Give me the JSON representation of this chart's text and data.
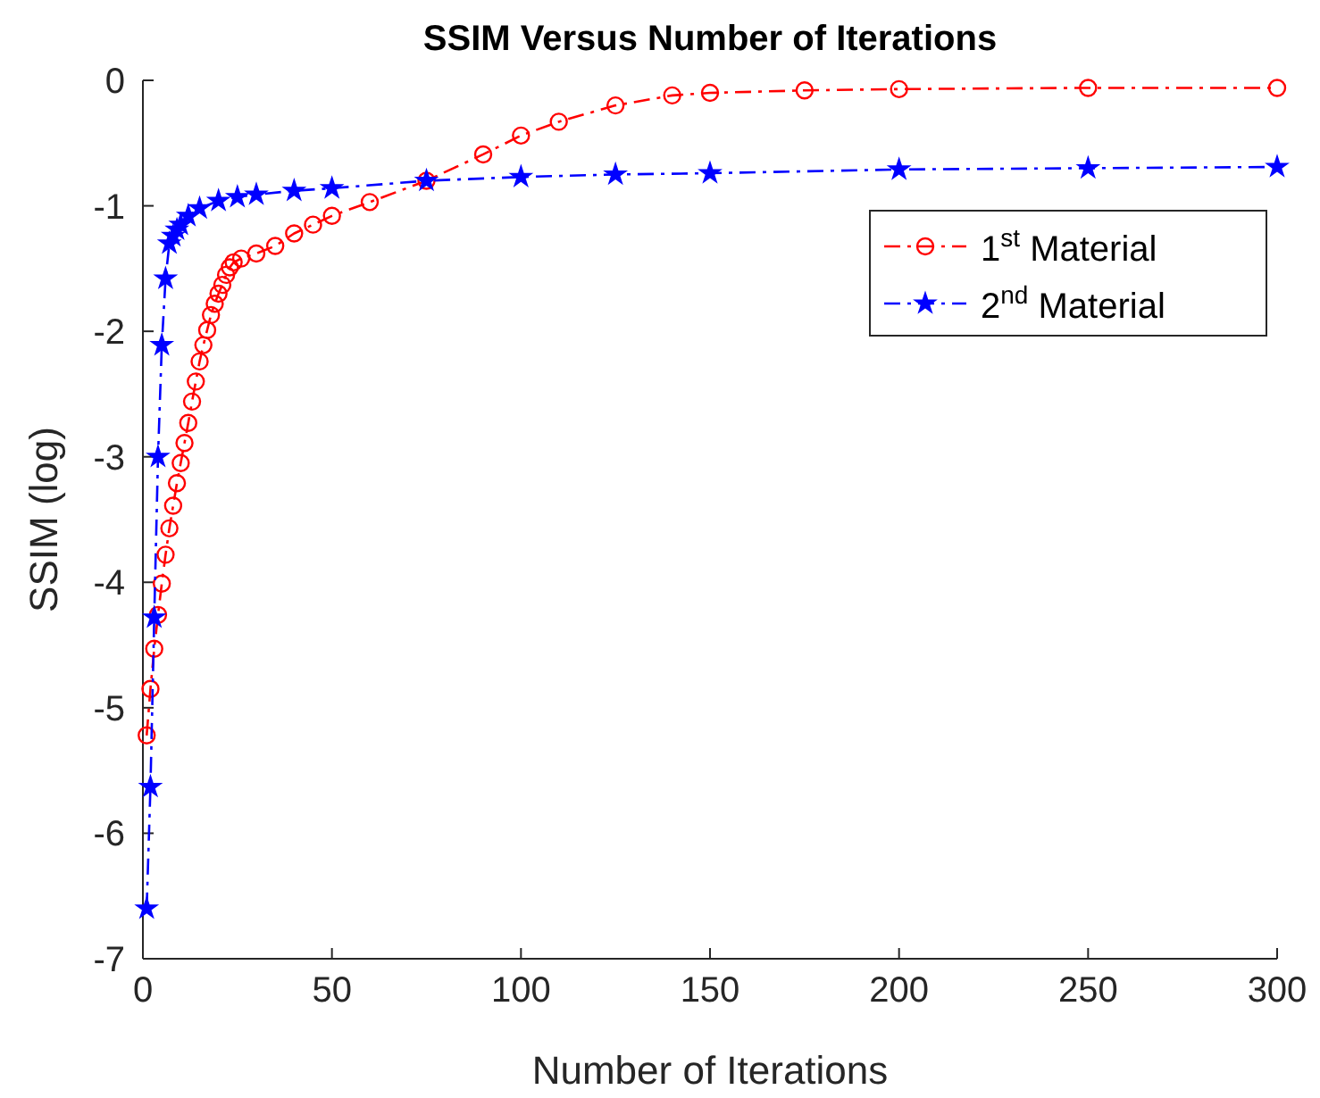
{
  "chart_data": {
    "type": "line",
    "title": "SSIM Versus Number of Iterations",
    "xlabel": "Number of Iterations",
    "ylabel": "SSIM (log)",
    "xlim": [
      0,
      300
    ],
    "xticks": [
      0,
      50,
      100,
      150,
      200,
      250,
      300
    ],
    "ylim": [
      -7,
      0
    ],
    "yticks": [
      -7,
      -6,
      -5,
      -4,
      -3,
      -2,
      -1,
      0
    ],
    "grid": false,
    "legend": "top right",
    "line_style": "dashed",
    "series": [
      {
        "name": "1$^{st}$ Material",
        "color": "#ff0000",
        "marker": "circle",
        "x": [
          1,
          2,
          3,
          4,
          5,
          6,
          7,
          8,
          9,
          10,
          11,
          12,
          13,
          14,
          15,
          16,
          17,
          18,
          19,
          20,
          21,
          22,
          23,
          24,
          26,
          30,
          35,
          40,
          45,
          50,
          60,
          75,
          90,
          100,
          110,
          125,
          140,
          150,
          175,
          200,
          250,
          300
        ],
        "values": [
          -5.22,
          -4.85,
          -4.53,
          -4.26,
          -4.01,
          -3.78,
          -3.57,
          -3.39,
          -3.21,
          -3.05,
          -2.89,
          -2.73,
          -2.56,
          -2.4,
          -2.24,
          -2.11,
          -1.99,
          -1.87,
          -1.78,
          -1.7,
          -1.63,
          -1.55,
          -1.49,
          -1.45,
          -1.42,
          -1.38,
          -1.32,
          -1.22,
          -1.15,
          -1.08,
          -0.97,
          -0.8,
          -0.59,
          -0.44,
          -0.33,
          -0.2,
          -0.12,
          -0.1,
          -0.08,
          -0.07,
          -0.06,
          -0.06
        ]
      },
      {
        "name": "2$^{nd}$ Material",
        "color": "#0000ff",
        "marker": "star",
        "x": [
          1,
          2,
          3,
          4,
          5,
          6,
          7,
          8,
          9,
          10,
          12,
          15,
          20,
          25,
          30,
          40,
          50,
          75,
          100,
          125,
          150,
          200,
          250,
          300
        ],
        "values": [
          -6.6,
          -5.63,
          -4.28,
          -3.0,
          -2.11,
          -1.58,
          -1.3,
          -1.24,
          -1.19,
          -1.15,
          -1.08,
          -1.02,
          -0.96,
          -0.93,
          -0.91,
          -0.88,
          -0.86,
          -0.8,
          -0.77,
          -0.75,
          -0.74,
          -0.71,
          -0.7,
          -0.69
        ]
      }
    ]
  }
}
